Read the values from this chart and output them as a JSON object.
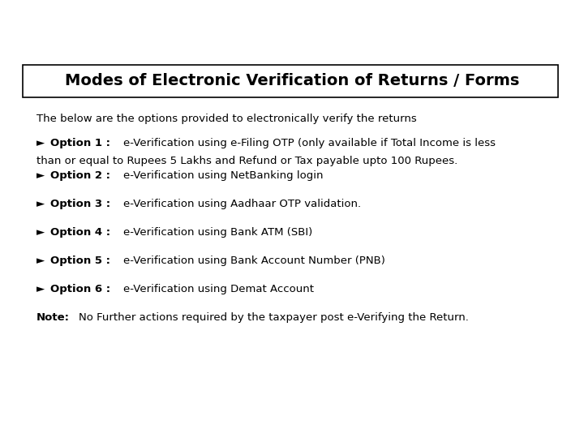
{
  "title": "Modes of Electronic Verification of Returns / Forms",
  "bg_color": "#ffffff",
  "header_bar_color": "#1a6b96",
  "green_bar_color": "#4e9a51",
  "light_green_color": "#b5d4b0",
  "dark_navy_color": "#2e3a6e",
  "intro_text": "The below are the options provided to electronically verify the returns",
  "options": [
    {
      "label": "Option 1 :",
      "text": "e-Verification using e-Filing OTP (only available if Total Income is less\nthan or equal to Rupees 5 Lakhs and Refund or Tax payable upto 100 Rupees."
    },
    {
      "label": "Option 2 :",
      "text": "e-Verification using NetBanking login"
    },
    {
      "label": "Option 3 :",
      "text": "e-Verification using Aadhaar OTP validation."
    },
    {
      "label": "Option 4 :",
      "text": "e-Verification using Bank ATM (SBI)"
    },
    {
      "label": "Option 5 :",
      "text": "e-Verification using Bank Account Number (PNB)"
    },
    {
      "label": "Option 6 :",
      "text": "e-Verification using Demat Account"
    }
  ],
  "note_label": "Note:",
  "note_text": "No Further actions required by the taxpayer post e-Verifying the Return.",
  "title_fontsize": 14,
  "body_fontsize": 9.5,
  "intro_fontsize": 9.5
}
